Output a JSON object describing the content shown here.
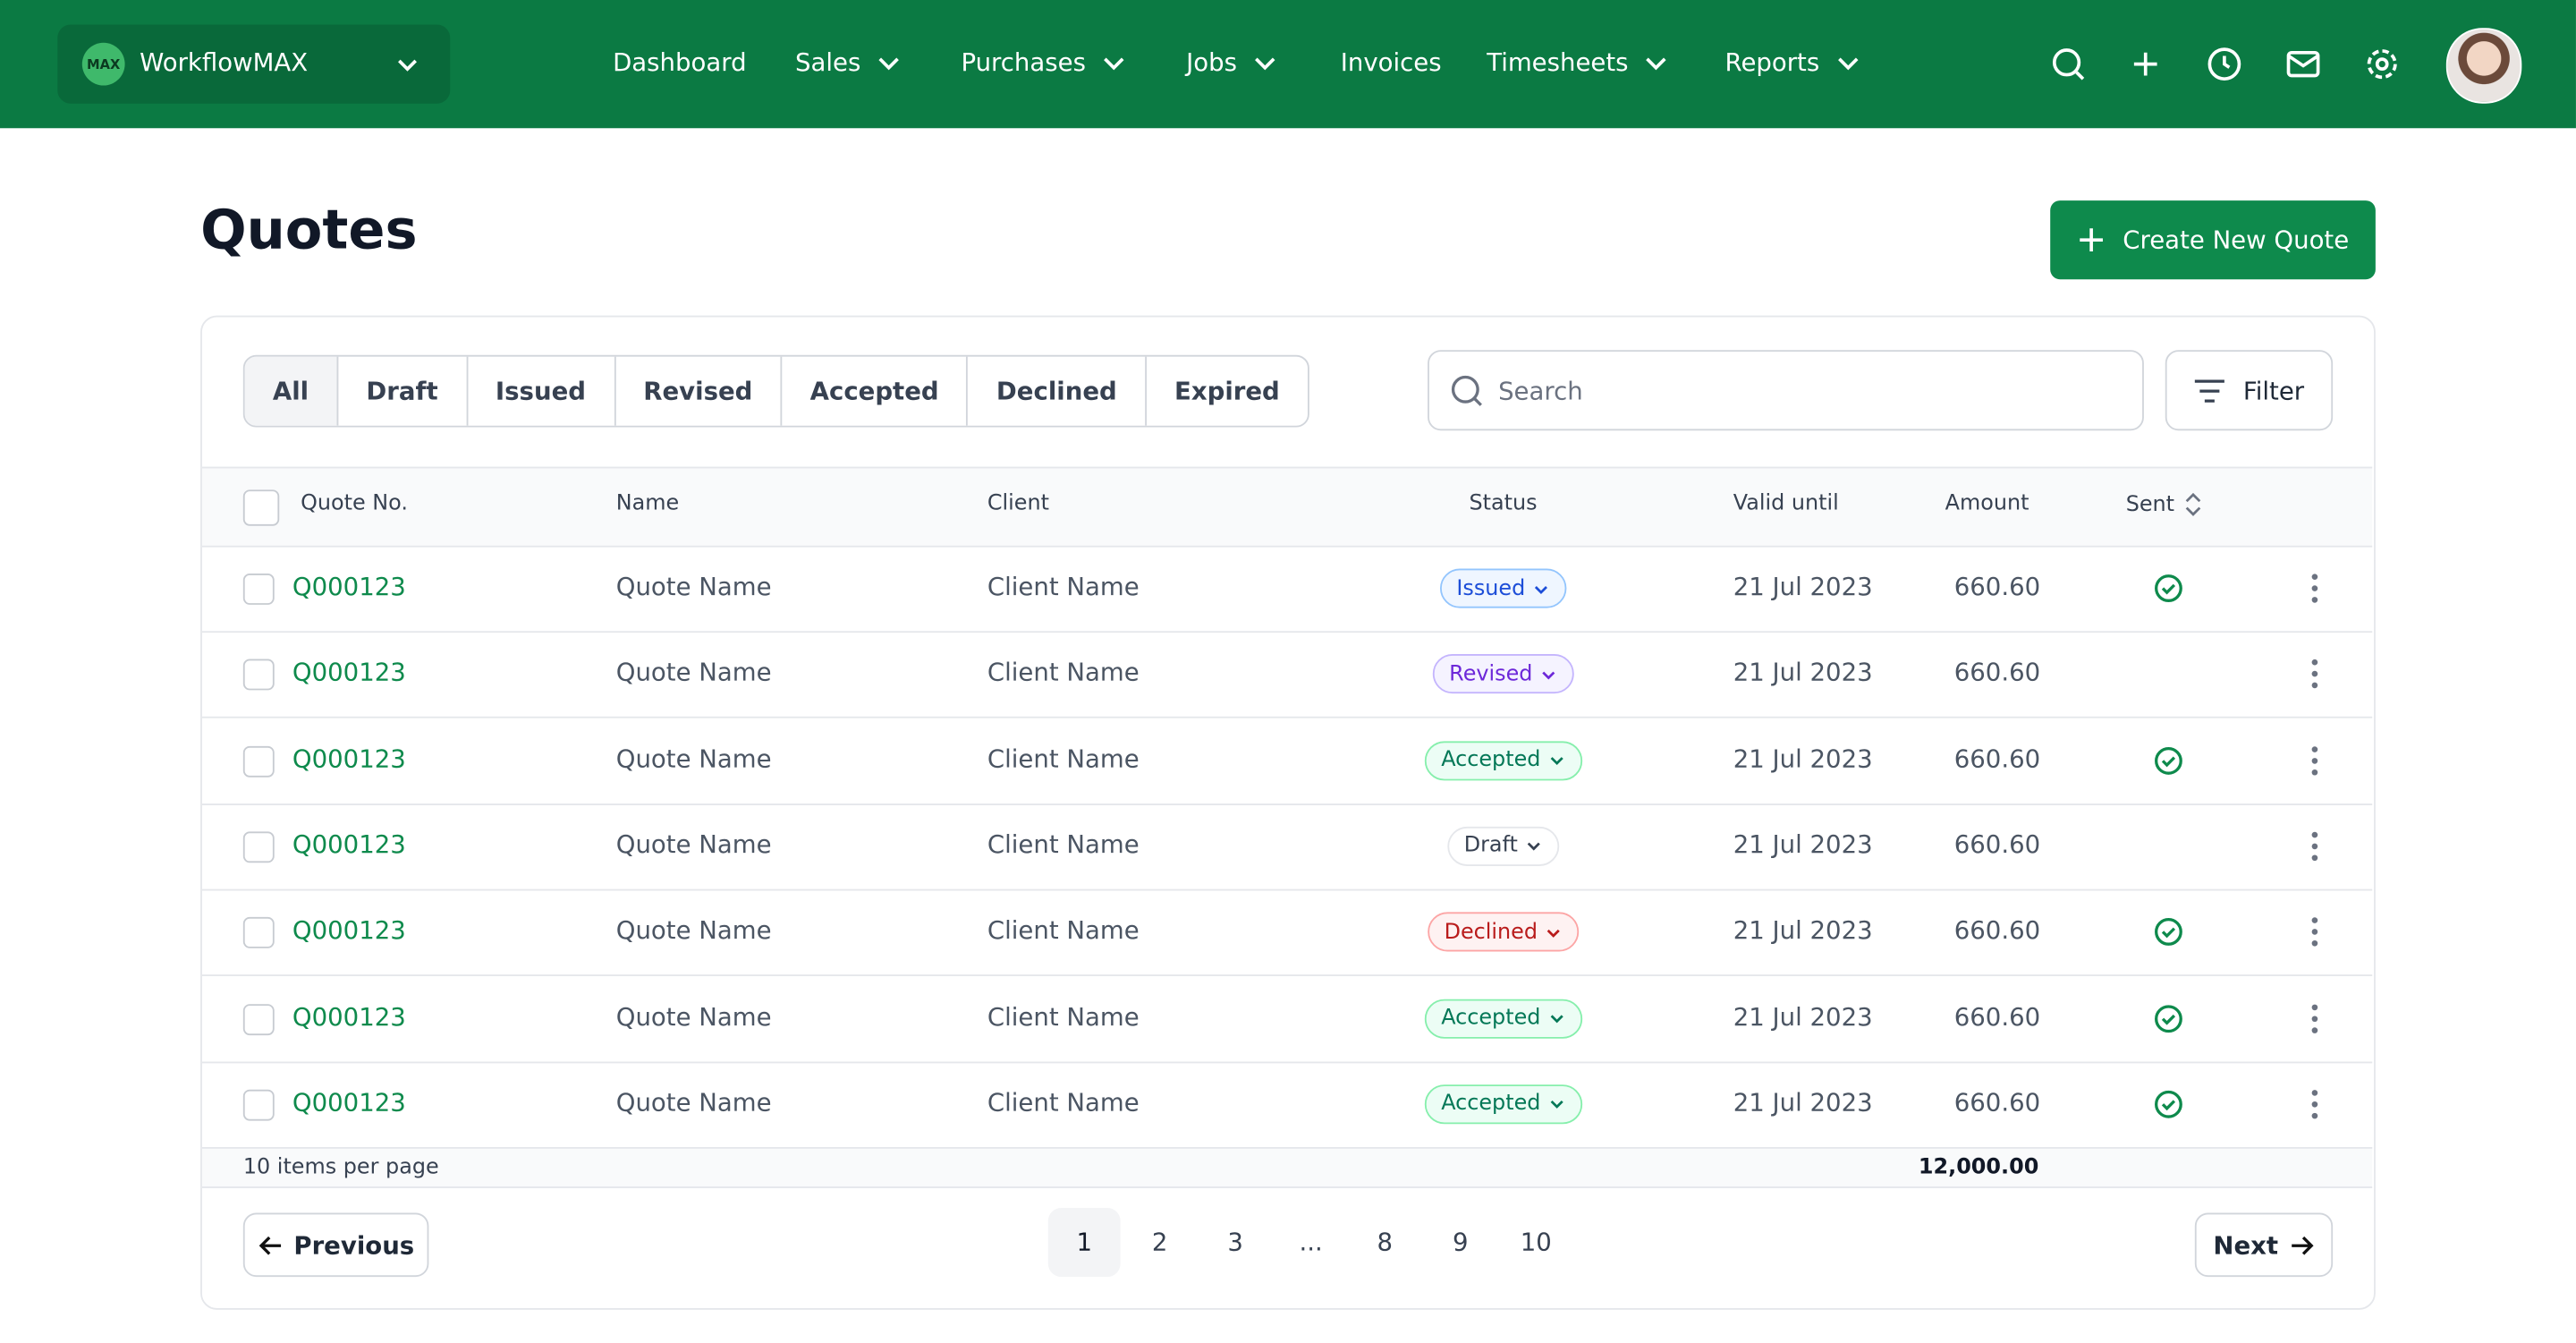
{
  "header": {
    "brand": "WorkflowMAX",
    "logo_text": "MAX",
    "nav": [
      {
        "label": "Dashboard",
        "dropdown": false
      },
      {
        "label": "Sales",
        "dropdown": true
      },
      {
        "label": "Purchases",
        "dropdown": true
      },
      {
        "label": "Jobs",
        "dropdown": true
      },
      {
        "label": "Invoices",
        "dropdown": false
      },
      {
        "label": "Timesheets",
        "dropdown": true
      },
      {
        "label": "Reports",
        "dropdown": true
      }
    ]
  },
  "page": {
    "title": "Quotes",
    "create_button": "Create New Quote"
  },
  "tabs": {
    "items": [
      "All",
      "Draft",
      "Issued",
      "Revised",
      "Accepted",
      "Declined",
      "Expired"
    ],
    "active": 0
  },
  "search": {
    "placeholder": "Search"
  },
  "filter": {
    "label": "Filter"
  },
  "table": {
    "columns": [
      "Quote No.",
      "Name",
      "Client",
      "Status",
      "Valid until",
      "Amount",
      "Sent"
    ],
    "rows": [
      {
        "quote_no": "Q000123",
        "name": "Quote Name",
        "client": "Client Name",
        "status": "Issued",
        "valid_until": "21 Jul 2023",
        "amount": "660.60",
        "sent": true
      },
      {
        "quote_no": "Q000123",
        "name": "Quote Name",
        "client": "Client Name",
        "status": "Revised",
        "valid_until": "21 Jul 2023",
        "amount": "660.60",
        "sent": false
      },
      {
        "quote_no": "Q000123",
        "name": "Quote Name",
        "client": "Client Name",
        "status": "Accepted",
        "valid_until": "21 Jul 2023",
        "amount": "660.60",
        "sent": true
      },
      {
        "quote_no": "Q000123",
        "name": "Quote Name",
        "client": "Client Name",
        "status": "Draft",
        "valid_until": "21 Jul 2023",
        "amount": "660.60",
        "sent": false
      },
      {
        "quote_no": "Q000123",
        "name": "Quote Name",
        "client": "Client Name",
        "status": "Declined",
        "valid_until": "21 Jul 2023",
        "amount": "660.60",
        "sent": true
      },
      {
        "quote_no": "Q000123",
        "name": "Quote Name",
        "client": "Client Name",
        "status": "Accepted",
        "valid_until": "21 Jul 2023",
        "amount": "660.60",
        "sent": true
      },
      {
        "quote_no": "Q000123",
        "name": "Quote Name",
        "client": "Client Name",
        "status": "Accepted",
        "valid_until": "21 Jul 2023",
        "amount": "660.60",
        "sent": true
      }
    ],
    "footer": {
      "per_page": "10 items per page",
      "total": "12,000.00"
    }
  },
  "pagination": {
    "previous": "Previous",
    "next": "Next",
    "pages": [
      "1",
      "2",
      "3",
      "...",
      "8",
      "9",
      "10"
    ],
    "active": 0
  }
}
